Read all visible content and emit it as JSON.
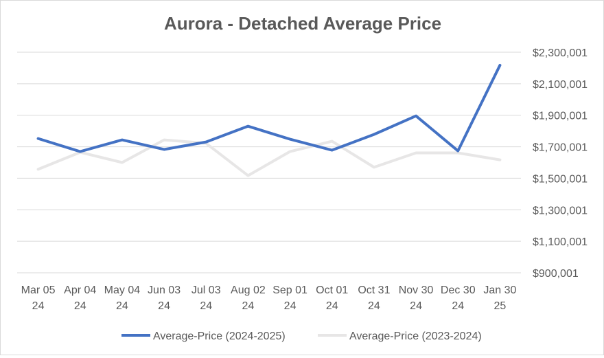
{
  "chart_data": {
    "type": "line",
    "title": "Aurora  - Detached Average Price",
    "xlabel": "",
    "ylabel": "",
    "categories": [
      [
        "Mar 05",
        "24"
      ],
      [
        "Apr 04",
        "24"
      ],
      [
        "May 04",
        "24"
      ],
      [
        "Jun 03",
        "24"
      ],
      [
        "Jul 03",
        "24"
      ],
      [
        "Aug 02",
        "24"
      ],
      [
        "Sep 01",
        "24"
      ],
      [
        "Oct 01",
        "24"
      ],
      [
        "Oct 31",
        "24"
      ],
      [
        "Nov 30",
        "24"
      ],
      [
        "Dec 30",
        "24"
      ],
      [
        "Jan 30",
        "25"
      ]
    ],
    "ylim": [
      900001,
      2300001
    ],
    "yticks": [
      900001,
      1100001,
      1300001,
      1500001,
      1700001,
      1900001,
      2100001,
      2300001
    ],
    "ytick_labels": [
      "$900,001",
      "$1,100,001",
      "$1,300,001",
      "$1,500,001",
      "$1,700,001",
      "$1,900,001",
      "$2,100,001",
      "$2,300,001"
    ],
    "grid": true,
    "legend_position": "bottom",
    "series": [
      {
        "name": "Average-Price (2024-2025)",
        "color": "#4472c4",
        "values": [
          1752000,
          1669600,
          1743500,
          1683000,
          1730400,
          1830400,
          1748000,
          1678300,
          1778300,
          1895700,
          1674000,
          2217400
        ]
      },
      {
        "name": "Average-Price (2023-2024)",
        "color": "#e7e6e6",
        "values": [
          1557000,
          1665000,
          1600000,
          1743500,
          1722000,
          1517000,
          1669600,
          1735000,
          1570000,
          1661000,
          1661000,
          1617000
        ]
      }
    ]
  }
}
